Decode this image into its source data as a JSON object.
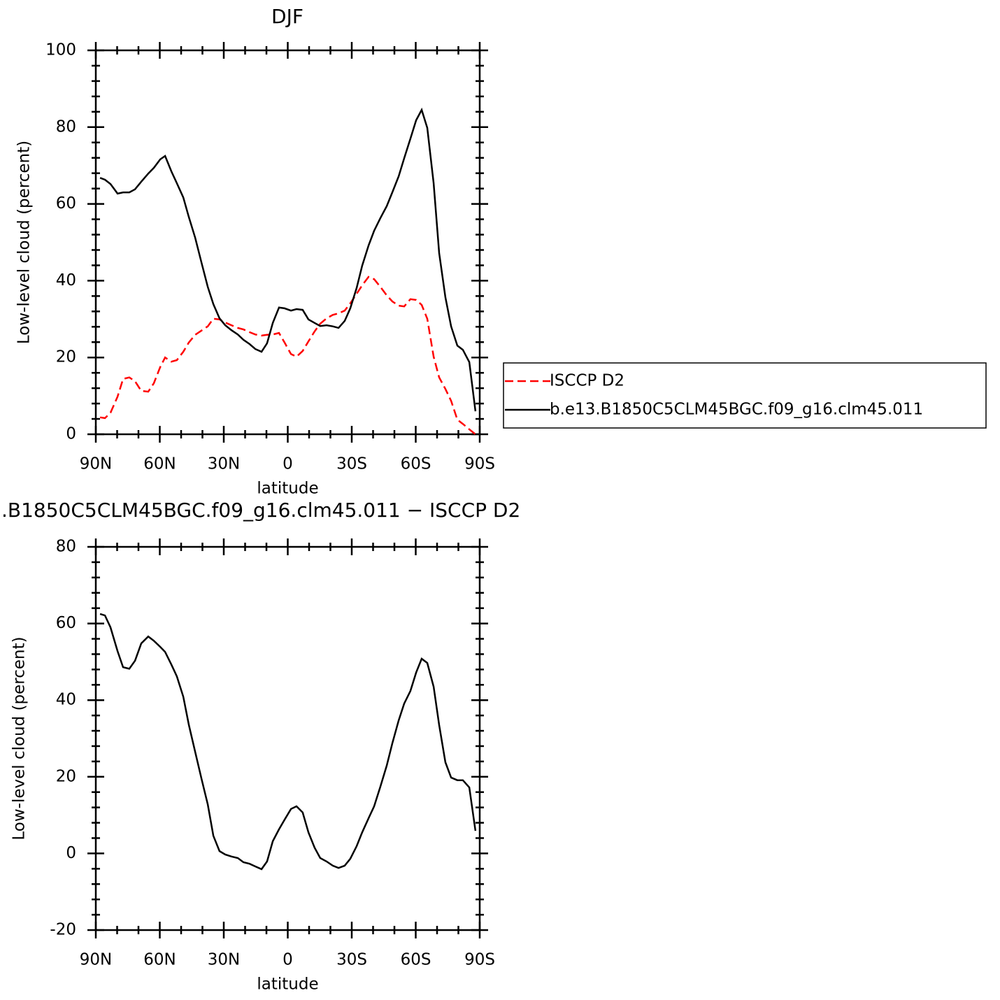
{
  "chart_data": [
    {
      "type": "line",
      "title": "DJF",
      "xlabel": "latitude",
      "ylabel": "Low-level cloud (percent)",
      "x": [
        88,
        85.7,
        83.1,
        79.8,
        77.2,
        74.3,
        71.6,
        68.7,
        65.4,
        62.8,
        59.8,
        57.5,
        54.6,
        52.0,
        49.0,
        46.4,
        43.4,
        40.5,
        37.5,
        34.9,
        32.0,
        29.3,
        26.4,
        23.4,
        20.8,
        17.9,
        15.2,
        12.3,
        9.7,
        7.0,
        4.1,
        1.5,
        -1.5,
        -4.1,
        -7.0,
        -9.7,
        -12.6,
        -15.2,
        -18.2,
        -21.1,
        -23.8,
        -26.7,
        -29.3,
        -32.3,
        -34.9,
        -37.9,
        -40.5,
        -43.4,
        -46.4,
        -49.0,
        -52.0,
        -54.6,
        -57.5,
        -60.2,
        -62.8,
        -65.4,
        -68.4,
        -71.0,
        -73.9,
        -76.6,
        -79.5,
        -82.1,
        -85.1,
        -88.0
      ],
      "series": [
        {
          "name": "ISCCP D2",
          "color": "#ff0000",
          "dashed": true,
          "values": [
            4.4,
            4.2,
            5.6,
            9.8,
            14.4,
            14.8,
            13.8,
            11.3,
            11.1,
            13.3,
            17.5,
            20.0,
            18.9,
            19.3,
            21.5,
            23.9,
            25.9,
            27.0,
            28.1,
            30.1,
            29.9,
            29.1,
            28.4,
            27.7,
            27.3,
            26.6,
            26.0,
            25.7,
            25.9,
            26.0,
            26.4,
            23.9,
            20.9,
            20.2,
            21.7,
            24.2,
            26.8,
            28.8,
            30.2,
            31.1,
            31.5,
            32.2,
            34.1,
            36.6,
            38.8,
            41.0,
            40.4,
            38.4,
            36.2,
            34.6,
            33.5,
            33.3,
            35.2,
            35.0,
            33.7,
            30.1,
            20.2,
            14.8,
            11.8,
            8.7,
            3.8,
            2.7,
            1.3,
            0
          ]
        },
        {
          "name": "b.e13.B1850C5CLM45BGC.f09_g16.clm45.011",
          "color": "#000000",
          "dashed": false,
          "values": [
            66.8,
            66.3,
            65.2,
            62.7,
            63.0,
            63.0,
            63.8,
            65.8,
            67.9,
            69.4,
            71.6,
            72.5,
            68.5,
            65.4,
            61.7,
            56.6,
            51.2,
            44.8,
            38.4,
            33.9,
            30.2,
            28.4,
            27.1,
            26.0,
            24.6,
            23.5,
            22.2,
            21.5,
            23.7,
            29.0,
            33.0,
            32.8,
            32.2,
            32.6,
            32.4,
            29.9,
            29.0,
            28.2,
            28.4,
            28.1,
            27.7,
            29.5,
            32.8,
            38.1,
            43.9,
            49.2,
            53.0,
            56.3,
            59.4,
            63.0,
            67.2,
            71.9,
            77.0,
            81.8,
            84.5,
            79.8,
            65.4,
            47.2,
            35.7,
            28.1,
            23.1,
            22.0,
            18.8,
            6.0
          ]
        }
      ],
      "xlim": [
        90,
        -90
      ],
      "xticks": [
        {
          "value": 90,
          "label": "90N"
        },
        {
          "value": 60,
          "label": "60N"
        },
        {
          "value": 30,
          "label": "30N"
        },
        0,
        {
          "value": -30,
          "label": "30S"
        },
        {
          "value": -60,
          "label": "60S"
        },
        {
          "value": -90,
          "label": "90S"
        }
      ],
      "ylim": [
        0,
        100
      ],
      "yticks": [
        0,
        20,
        40,
        60,
        80,
        100
      ],
      "minor_subdivisions": {
        "x": 3,
        "y": 5
      },
      "legend": "right"
    },
    {
      "type": "line",
      "title": ".B1850C5CLM45BGC.f09_g16.clm45.011 − ISCCP D2",
      "xlabel": "latitude",
      "ylabel": "Low-level cloud (percent)",
      "x": [
        88,
        85.7,
        83.1,
        79.8,
        77.2,
        74.3,
        71.6,
        68.7,
        65.4,
        62.8,
        59.8,
        57.5,
        54.6,
        52.0,
        49.0,
        46.4,
        43.4,
        40.5,
        37.5,
        34.9,
        32.0,
        29.3,
        26.4,
        23.4,
        20.8,
        17.9,
        15.2,
        12.3,
        9.7,
        7.0,
        4.1,
        1.5,
        -1.5,
        -4.1,
        -7.0,
        -9.7,
        -12.6,
        -15.2,
        -18.2,
        -21.1,
        -23.8,
        -26.7,
        -29.3,
        -32.3,
        -34.9,
        -37.9,
        -40.5,
        -43.4,
        -46.4,
        -49.0,
        -52.0,
        -54.6,
        -57.5,
        -60.2,
        -62.8,
        -65.4,
        -68.4,
        -71.0,
        -73.9,
        -76.6,
        -79.5,
        -82.1,
        -85.1,
        -88.0
      ],
      "series": [
        {
          "color": "#000000",
          "dashed": false,
          "values": [
            62.5,
            62.1,
            59.0,
            52.8,
            48.6,
            48.2,
            50.3,
            54.8,
            56.6,
            55.5,
            53.9,
            52.6,
            49.3,
            46.2,
            40.9,
            33.6,
            26.5,
            19.6,
            12.8,
            4.6,
            0.6,
            -0.3,
            -0.8,
            -1.2,
            -2.3,
            -2.7,
            -3.4,
            -4.1,
            -2.1,
            3.2,
            6.3,
            8.8,
            11.6,
            12.3,
            10.7,
            5.5,
            1.5,
            -1.2,
            -2.1,
            -3.2,
            -3.8,
            -3.2,
            -1.4,
            1.9,
            5.5,
            9.2,
            12.3,
            17.4,
            22.9,
            28.7,
            34.7,
            39.1,
            42.4,
            47.2,
            50.8,
            49.7,
            43.5,
            33.5,
            23.8,
            19.8,
            19.1,
            19.1,
            17.2,
            5.9
          ]
        }
      ],
      "xlim": [
        90,
        -90
      ],
      "xticks": [
        {
          "value": 90,
          "label": "90N"
        },
        {
          "value": 60,
          "label": "60N"
        },
        {
          "value": 30,
          "label": "30N"
        },
        0,
        {
          "value": -30,
          "label": "30S"
        },
        {
          "value": -60,
          "label": "60S"
        },
        {
          "value": -90,
          "label": "90S"
        }
      ],
      "ylim": [
        -20,
        80
      ],
      "yticks": [
        -20,
        0,
        20,
        40,
        60,
        80
      ],
      "minor_subdivisions": {
        "x": 3,
        "y": 5
      }
    }
  ]
}
